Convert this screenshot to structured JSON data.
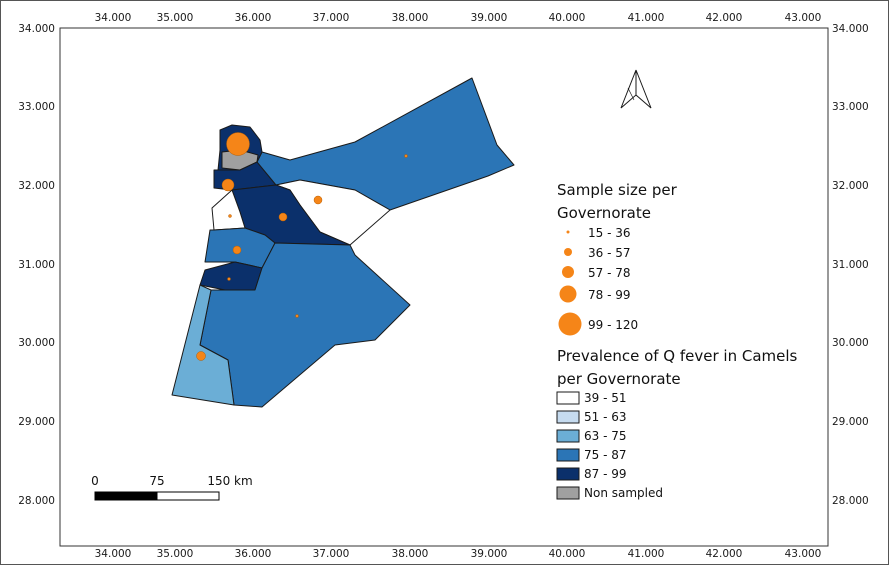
{
  "map": {
    "x_ticks": [
      "34.000",
      "35.000",
      "36.000",
      "37.000",
      "38.000",
      "39.000",
      "40.000",
      "41.000",
      "42.000",
      "43.000"
    ],
    "y_ticks": [
      "34.000",
      "33.000",
      "32.000",
      "31.000",
      "30.000",
      "29.000",
      "28.000"
    ],
    "x_range": [
      33.6,
      43.4
    ],
    "y_range": [
      27.6,
      34.1
    ]
  },
  "legend_size": {
    "title_line1": "Sample size per",
    "title_line2": "Governorate",
    "items": [
      {
        "label": "15 - 36"
      },
      {
        "label": "36 - 57"
      },
      {
        "label": "57 - 78"
      },
      {
        "label": "78 - 99"
      },
      {
        "label": "99 - 120"
      }
    ],
    "symbol_color": "#f58518"
  },
  "legend_prevalence": {
    "title_line1": "Prevalence of Q fever in Camels",
    "title_line2": "per Governorate",
    "items": [
      {
        "label": "39 - 51",
        "color": "#ffffff"
      },
      {
        "label": "51 - 63",
        "color": "#c6dbef"
      },
      {
        "label": "63 - 75",
        "color": "#6baed6"
      },
      {
        "label": "75 - 87",
        "color": "#2b75b6"
      },
      {
        "label": "87 - 99",
        "color": "#0b306b"
      },
      {
        "label": "Non sampled",
        "color": "#a0a0a0"
      }
    ]
  },
  "scale_bar": {
    "labels": [
      "0",
      "75",
      "150 km"
    ]
  },
  "north_arrow": {
    "icon": "north-arrow-icon"
  }
}
